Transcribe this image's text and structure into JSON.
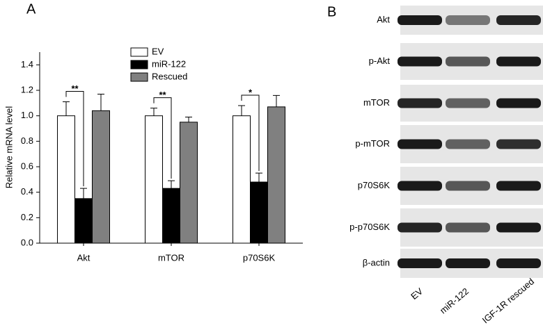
{
  "chart_data": {
    "type": "bar",
    "panel_label": "A",
    "ylabel": "Relative mRNA level",
    "categories": [
      "Akt",
      "mTOR",
      "p70S6K"
    ],
    "series": [
      {
        "name": "EV",
        "color": "#ffffff",
        "values": [
          1.0,
          1.0,
          1.0
        ],
        "errors": [
          0.11,
          0.06,
          0.08
        ]
      },
      {
        "name": "miR-122",
        "color": "#000000",
        "values": [
          0.35,
          0.43,
          0.48
        ],
        "errors": [
          0.08,
          0.06,
          0.07
        ]
      },
      {
        "name": "Rescued",
        "color": "#808080",
        "values": [
          1.04,
          0.95,
          1.07
        ],
        "errors": [
          0.13,
          0.04,
          0.09
        ]
      }
    ],
    "annotations": [
      "**",
      "**",
      "*"
    ],
    "ylim": [
      0,
      1.5
    ],
    "yticks": [
      {
        "value": 0,
        "label": "0.0"
      },
      0.2,
      0.4,
      0.6,
      0.8,
      {
        "value": 1,
        "label": "1.0"
      },
      1.2,
      1.4
    ]
  },
  "blot": {
    "panel_label": "B",
    "rows": [
      "Akt",
      "p-Akt",
      "mTOR",
      "p-mTOR",
      "p70S6K",
      "p-p70S6K",
      "β-actin"
    ],
    "lanes": [
      "EV",
      "miR-122",
      "IGF-1R rescued"
    ]
  }
}
